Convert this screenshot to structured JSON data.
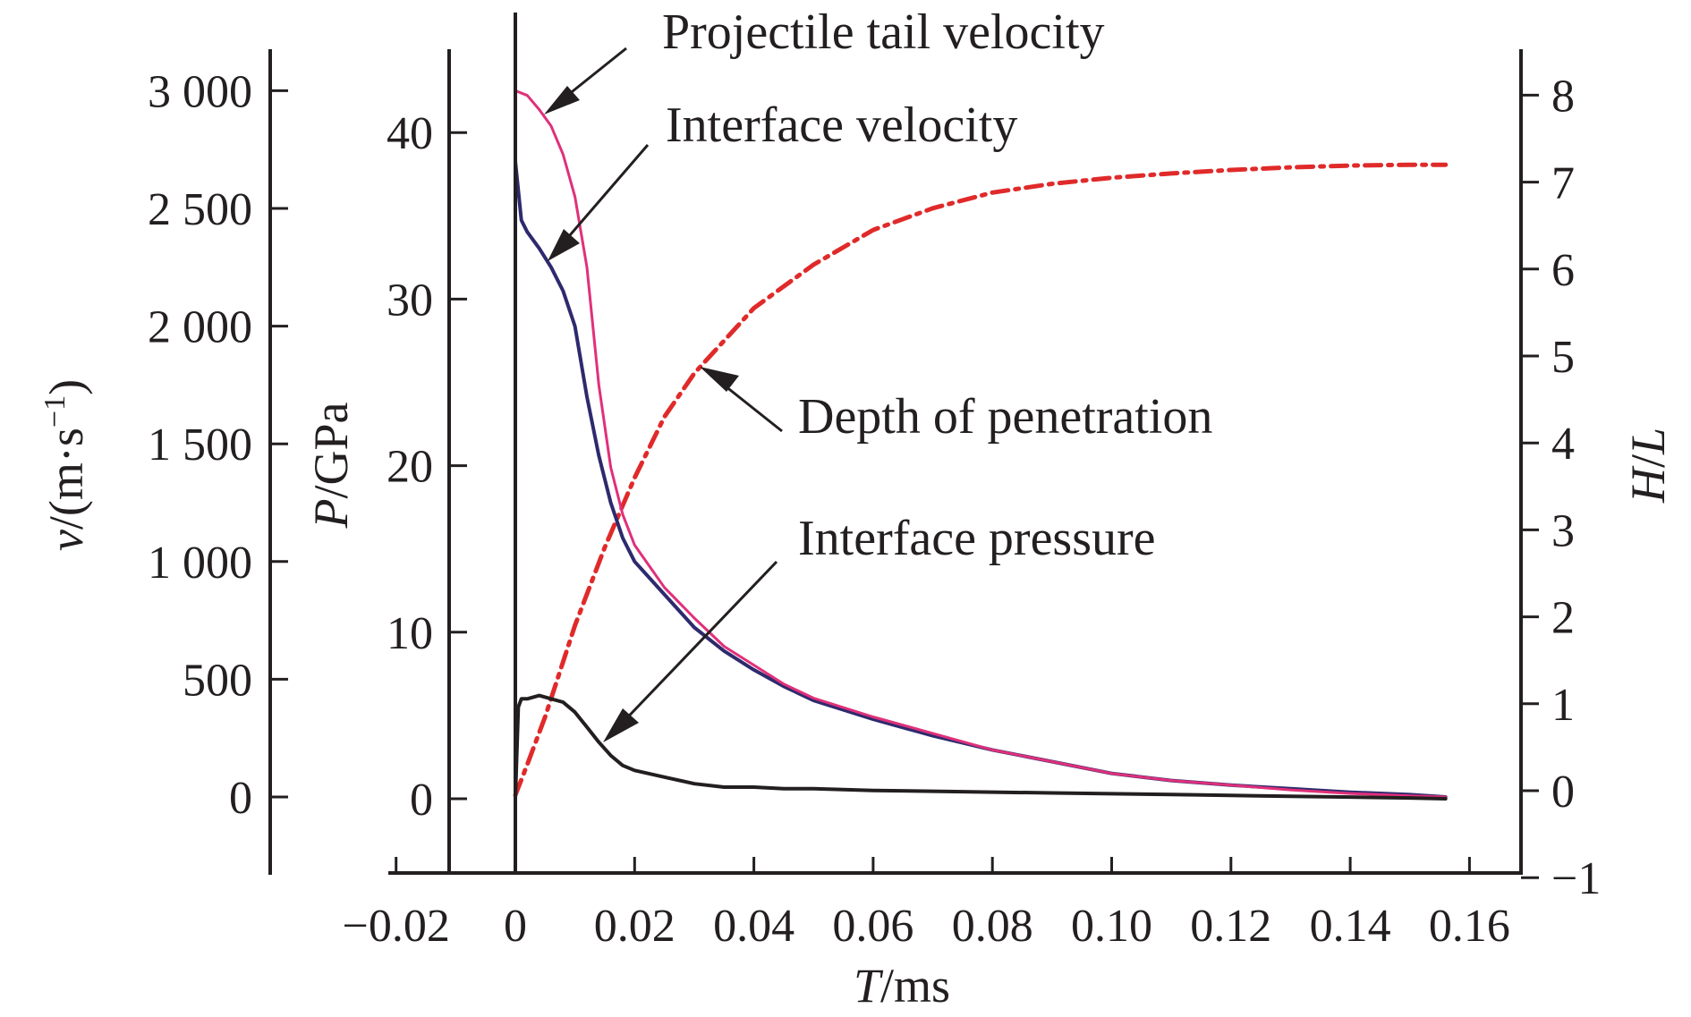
{
  "chart_data": {
    "type": "line",
    "title": "",
    "x_axis": {
      "label_italic": "T",
      "label_rest": "/ms",
      "ticks": [
        -0.02,
        0,
        0.02,
        0.04,
        0.06,
        0.08,
        0.1,
        0.12,
        0.14,
        0.16
      ],
      "tick_labels": [
        "−0.02",
        "0",
        "0.02",
        "0.04",
        "0.06",
        "0.08",
        "0.10",
        "0.12",
        "0.14",
        "0.16"
      ],
      "range": [
        -0.02,
        0.16
      ]
    },
    "y_axis_velocity": {
      "label_italic": "v",
      "label_rest": "/(m·s",
      "label_sup": "−1",
      "label_close": ")",
      "ticks": [
        0,
        500,
        1000,
        1500,
        2000,
        2500,
        3000
      ],
      "tick_labels": [
        "0",
        "500",
        "1 000",
        "1 500",
        "2 000",
        "2 500",
        "3 000"
      ],
      "range": [
        -320,
        3300
      ]
    },
    "y_axis_pressure": {
      "label_italic": "P",
      "label_rest": "/GPa",
      "ticks": [
        0,
        10,
        20,
        30,
        40
      ],
      "tick_labels": [
        "0",
        "10",
        "20",
        "30",
        "40"
      ],
      "range": [
        -4.5,
        45
      ]
    },
    "y_axis_depth": {
      "label_italic": "H",
      "label_sep": "/",
      "label_italic2": "L",
      "ticks": [
        -1,
        0,
        1,
        2,
        3,
        4,
        5,
        6,
        7,
        8
      ],
      "tick_labels": [
        "−1",
        "0",
        "1",
        "2",
        "3",
        "4",
        "5",
        "6",
        "7",
        "8"
      ],
      "range": [
        -1,
        8.5
      ]
    },
    "series": [
      {
        "name": "Projectile tail velocity",
        "axis": "velocity",
        "color": "#e0307a",
        "style": "solid",
        "x": [
          0.0,
          0.002,
          0.004,
          0.006,
          0.008,
          0.01,
          0.012,
          0.014,
          0.016,
          0.018,
          0.02,
          0.025,
          0.03,
          0.035,
          0.04,
          0.045,
          0.05,
          0.06,
          0.07,
          0.08,
          0.09,
          0.1,
          0.11,
          0.12,
          0.13,
          0.14,
          0.15,
          0.156
        ],
        "values": [
          3000,
          2980,
          2920,
          2850,
          2730,
          2550,
          2250,
          1750,
          1400,
          1200,
          1070,
          890,
          760,
          640,
          560,
          480,
          420,
          340,
          270,
          200,
          150,
          100,
          70,
          50,
          30,
          15,
          5,
          0
        ]
      },
      {
        "name": "Interface velocity",
        "axis": "velocity",
        "color": "#2e2a6e",
        "style": "noisy",
        "x": [
          0.0,
          0.001,
          0.002,
          0.004,
          0.006,
          0.008,
          0.01,
          0.012,
          0.014,
          0.016,
          0.018,
          0.02,
          0.025,
          0.03,
          0.035,
          0.04,
          0.045,
          0.05,
          0.06,
          0.07,
          0.08,
          0.09,
          0.1,
          0.11,
          0.12,
          0.13,
          0.14,
          0.15,
          0.156
        ],
        "values": [
          2700,
          2450,
          2400,
          2330,
          2250,
          2150,
          2000,
          1700,
          1450,
          1250,
          1100,
          1000,
          860,
          720,
          620,
          540,
          470,
          410,
          330,
          260,
          200,
          150,
          100,
          70,
          50,
          35,
          20,
          10,
          0
        ]
      },
      {
        "name": "Depth of penetration",
        "axis": "depth",
        "color": "#e02a2a",
        "style": "dash-dot",
        "x": [
          0.0,
          0.002,
          0.005,
          0.01,
          0.015,
          0.02,
          0.025,
          0.03,
          0.04,
          0.05,
          0.06,
          0.07,
          0.08,
          0.09,
          0.1,
          0.11,
          0.12,
          0.13,
          0.14,
          0.15,
          0.156
        ],
        "values": [
          -0.05,
          0.3,
          0.85,
          1.9,
          2.8,
          3.6,
          4.3,
          4.8,
          5.55,
          6.05,
          6.45,
          6.7,
          6.88,
          6.98,
          7.05,
          7.1,
          7.14,
          7.17,
          7.19,
          7.2,
          7.2
        ]
      },
      {
        "name": "Interface pressure",
        "axis": "pressure",
        "color": "#231f20",
        "style": "noisy",
        "x": [
          0.0,
          0.0005,
          0.001,
          0.002,
          0.004,
          0.006,
          0.008,
          0.01,
          0.012,
          0.014,
          0.016,
          0.018,
          0.02,
          0.025,
          0.03,
          0.035,
          0.04,
          0.045,
          0.05,
          0.06,
          0.07,
          0.08,
          0.09,
          0.1,
          0.11,
          0.12,
          0.13,
          0.14,
          0.15,
          0.156
        ],
        "values": [
          0,
          5.5,
          6.0,
          6.0,
          6.2,
          6.0,
          5.8,
          5.2,
          4.3,
          3.4,
          2.6,
          2.0,
          1.7,
          1.3,
          0.9,
          0.7,
          0.7,
          0.6,
          0.6,
          0.5,
          0.45,
          0.4,
          0.35,
          0.3,
          0.25,
          0.2,
          0.15,
          0.1,
          0.05,
          0.0
        ]
      }
    ],
    "annotations": [
      {
        "text": "Projectile tail velocity",
        "target_series": "Projectile tail velocity"
      },
      {
        "text": "Interface velocity",
        "target_series": "Interface velocity"
      },
      {
        "text": "Depth of penetration",
        "target_series": "Depth of penetration"
      },
      {
        "text": "Interface pressure",
        "target_series": "Interface pressure"
      }
    ],
    "grid": false,
    "legend": "none"
  }
}
